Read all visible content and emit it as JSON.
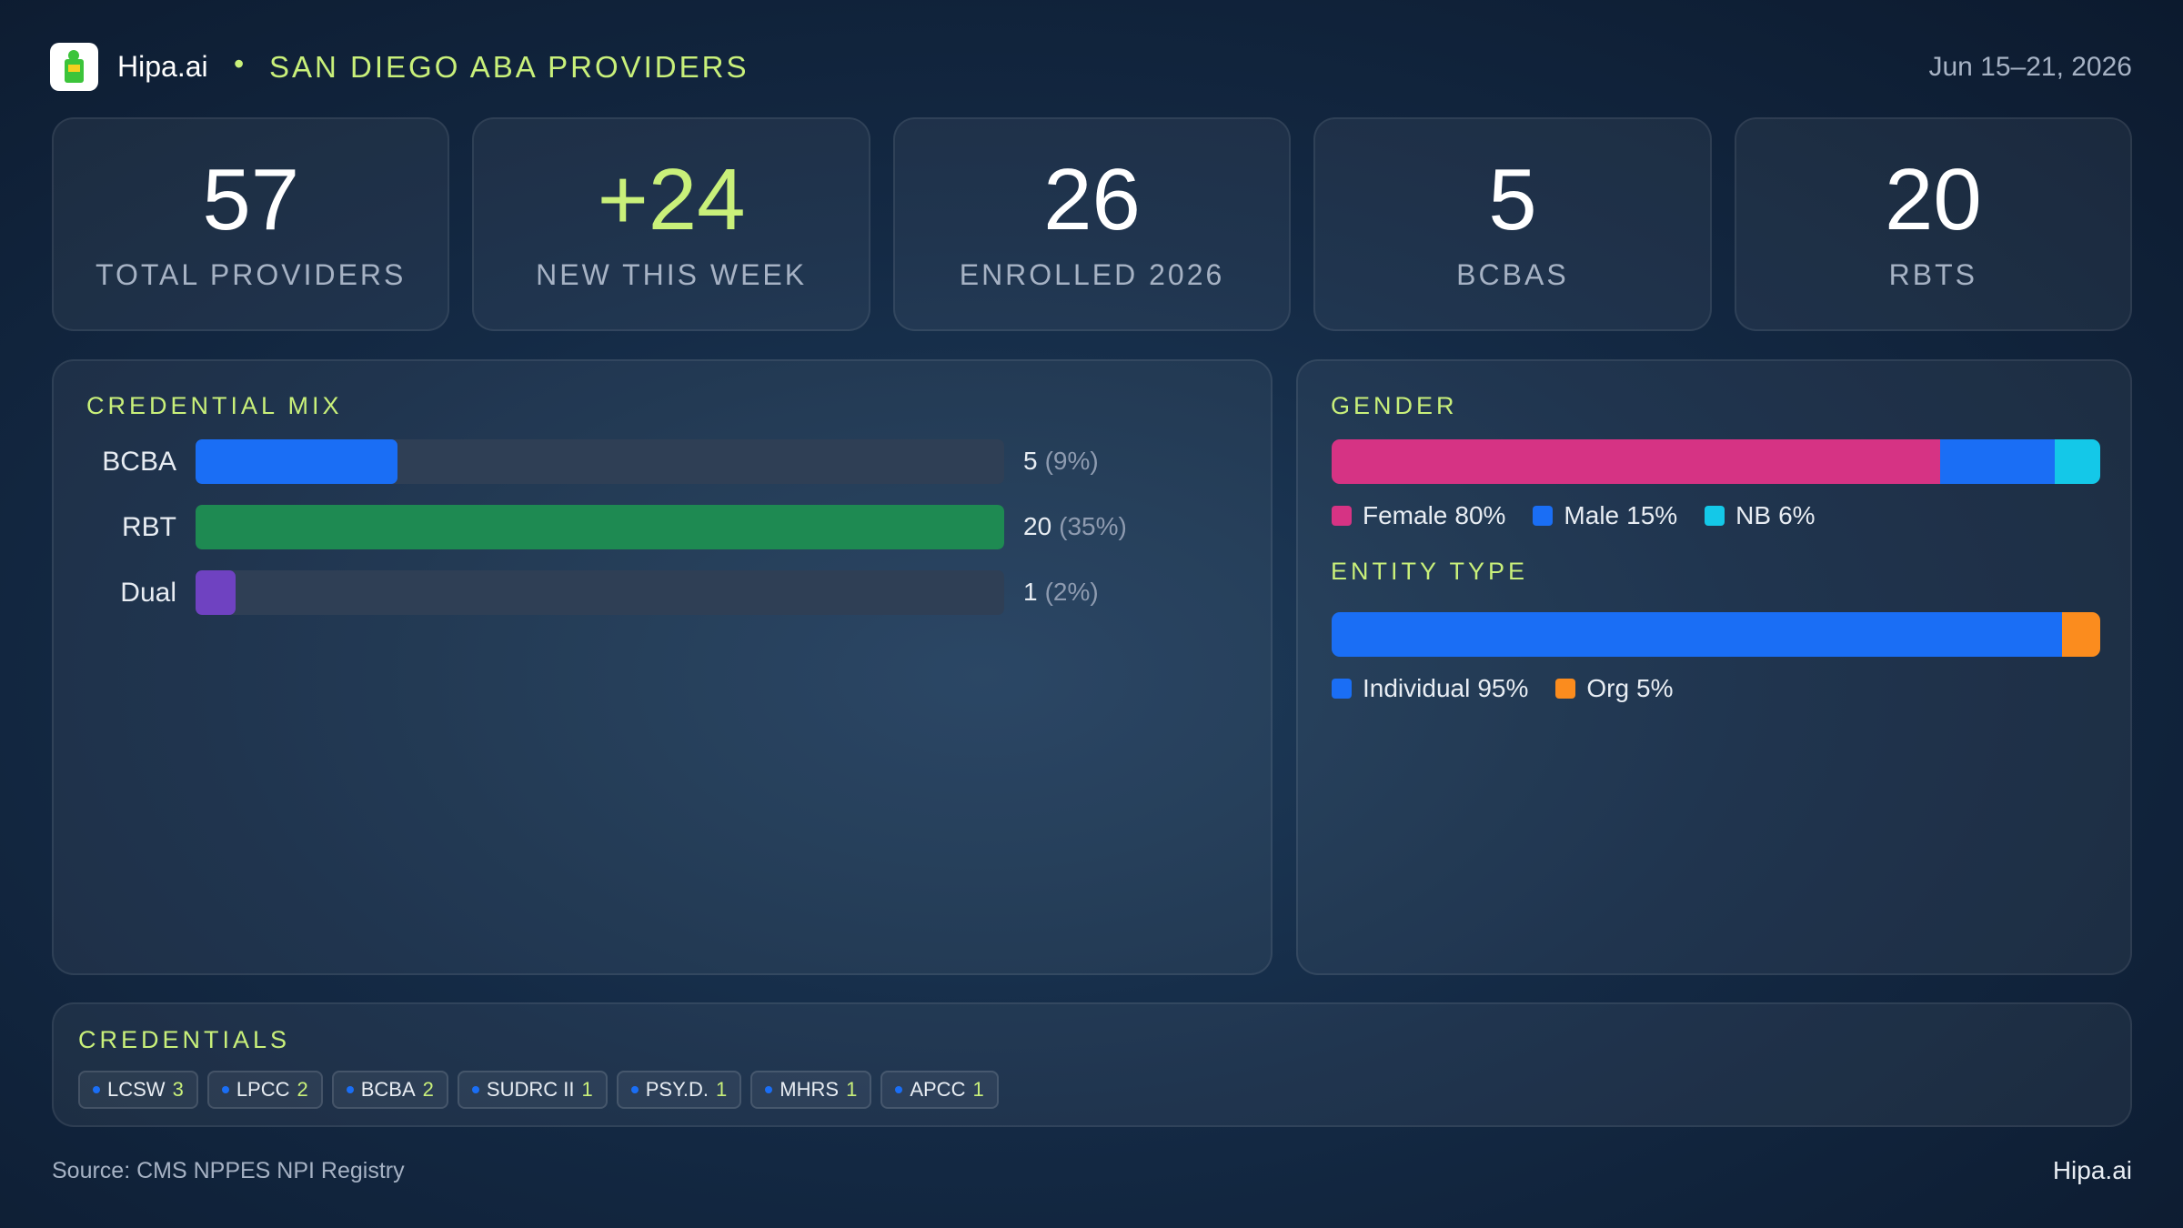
{
  "header": {
    "brand": "Hipa.ai",
    "title": "SAN DIEGO ABA PROVIDERS",
    "date": "Jun 15–21, 2026"
  },
  "kpis": [
    {
      "value": "57",
      "label": "TOTAL PROVIDERS"
    },
    {
      "value": "+24",
      "label": "NEW THIS WEEK"
    },
    {
      "value": "26",
      "label": "ENROLLED 2026"
    },
    {
      "value": "5",
      "label": "BCBAS"
    },
    {
      "value": "20",
      "label": "RBTS"
    }
  ],
  "credential_mix": {
    "title": "CREDENTIAL MIX",
    "categories": [
      "BCBA",
      "RBT",
      "Dual"
    ],
    "values": [
      5,
      20,
      1
    ],
    "share_labels": [
      "(9%)",
      "(35%)",
      "(2%)"
    ],
    "colors": [
      "#1a6ef5",
      "#1e8a52",
      "#6f42c1"
    ],
    "xlim": [
      0,
      20
    ]
  },
  "gender": {
    "title": "GENDER",
    "segments": [
      {
        "name": "Female",
        "value": 80,
        "label": "80%",
        "color": "#d63384"
      },
      {
        "name": "Male",
        "value": 15,
        "label": "15%",
        "color": "#1a6ef5"
      },
      {
        "name": "NB",
        "value": 6,
        "label": "6%",
        "color": "#14c8e8"
      }
    ]
  },
  "entity_type": {
    "title": "ENTITY TYPE",
    "segments": [
      {
        "name": "Individual",
        "value": 95,
        "label": "95%",
        "color": "#1a6ef5"
      },
      {
        "name": "Org",
        "value": 5,
        "label": "5%",
        "color": "#fb8c1e"
      }
    ]
  },
  "credentials": {
    "title": "CREDENTIALS",
    "items": [
      {
        "name": "LCSW",
        "count": 3
      },
      {
        "name": "LPCC",
        "count": 2
      },
      {
        "name": "BCBA",
        "count": 2
      },
      {
        "name": "SUDRC II",
        "count": 1
      },
      {
        "name": "PSY.D.",
        "count": 1
      },
      {
        "name": "MHRS",
        "count": 1
      },
      {
        "name": "APCC",
        "count": 1
      }
    ]
  },
  "footer": {
    "source": "Source: CMS NPPES NPI Registry",
    "brand": "Hipa.ai"
  }
}
